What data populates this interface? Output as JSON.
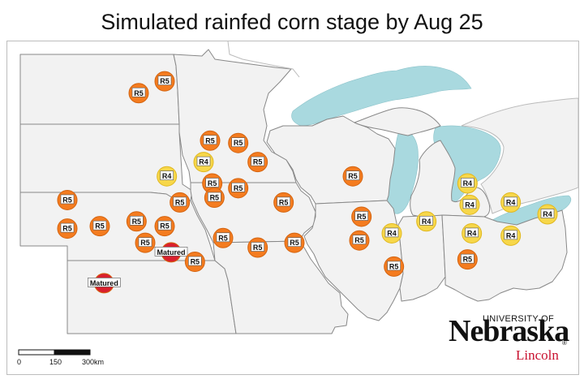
{
  "title": "Simulated rainfed corn stage by Aug 25",
  "colors": {
    "lake": "#a9d9df",
    "state_fill": "#f2f2f2",
    "border": "#888888",
    "r5": "#f47c20",
    "r4": "#f7d74a",
    "matured": "#d9202e",
    "logo_red": "#c8102e"
  },
  "legend": {
    "scale_labels": [
      "0",
      "150",
      "300km"
    ]
  },
  "logo": {
    "university": "UNIVERSITY OF",
    "name": "Nebraska",
    "registered": "®",
    "campus": "Lincoln"
  },
  "markers": [
    {
      "label": "R5",
      "stage": "R5",
      "lon": -97.6,
      "lat": 48.3
    },
    {
      "label": "R5",
      "stage": "R5",
      "lon": -98.8,
      "lat": 47.8
    },
    {
      "label": "R5",
      "stage": "R5",
      "lon": -95.5,
      "lat": 45.8
    },
    {
      "label": "R5",
      "stage": "R5",
      "lon": -94.2,
      "lat": 45.7
    },
    {
      "label": "R4",
      "stage": "R4",
      "lon": -95.8,
      "lat": 44.9
    },
    {
      "label": "R5",
      "stage": "R5",
      "lon": -93.3,
      "lat": 44.9
    },
    {
      "label": "R4",
      "stage": "R4",
      "lon": -97.5,
      "lat": 44.3
    },
    {
      "label": "R5",
      "stage": "R5",
      "lon": -95.4,
      "lat": 44.0
    },
    {
      "label": "R5",
      "stage": "R5",
      "lon": -94.2,
      "lat": 43.8
    },
    {
      "label": "R5",
      "stage": "R5",
      "lon": -88.9,
      "lat": 44.3
    },
    {
      "label": "R5",
      "stage": "R5",
      "lon": -102.1,
      "lat": 43.3
    },
    {
      "label": "R5",
      "stage": "R5",
      "lon": -96.9,
      "lat": 43.2
    },
    {
      "label": "R5",
      "stage": "R5",
      "lon": -95.3,
      "lat": 43.4
    },
    {
      "label": "R5",
      "stage": "R5",
      "lon": -92.1,
      "lat": 43.2
    },
    {
      "label": "R5",
      "stage": "R5",
      "lon": -102.1,
      "lat": 42.1
    },
    {
      "label": "R5",
      "stage": "R5",
      "lon": -100.6,
      "lat": 42.2
    },
    {
      "label": "R5",
      "stage": "R5",
      "lon": -98.9,
      "lat": 42.4
    },
    {
      "label": "R5",
      "stage": "R5",
      "lon": -97.6,
      "lat": 42.2
    },
    {
      "label": "R5",
      "stage": "R5",
      "lon": -98.5,
      "lat": 41.5
    },
    {
      "label": "R5",
      "stage": "R5",
      "lon": -94.9,
      "lat": 41.7
    },
    {
      "label": "R5",
      "stage": "R5",
      "lon": -93.3,
      "lat": 41.3
    },
    {
      "label": "R5",
      "stage": "R5",
      "lon": -91.6,
      "lat": 41.5
    },
    {
      "label": "R5",
      "stage": "R5",
      "lon": -88.5,
      "lat": 42.6
    },
    {
      "label": "R5",
      "stage": "R5",
      "lon": -88.6,
      "lat": 41.6
    },
    {
      "label": "R4",
      "stage": "R4",
      "lon": -87.1,
      "lat": 41.9
    },
    {
      "label": "R5",
      "stage": "R5",
      "lon": -87.0,
      "lat": 40.5
    },
    {
      "label": "Matured",
      "stage": "Matured",
      "lon": -97.3,
      "lat": 41.1
    },
    {
      "label": "R5",
      "stage": "R5",
      "lon": -96.2,
      "lat": 40.7
    },
    {
      "label": "Matured",
      "stage": "Matured",
      "lon": -100.4,
      "lat": 39.8
    },
    {
      "label": "R4",
      "stage": "R4",
      "lon": -85.5,
      "lat": 42.4
    },
    {
      "label": "R4",
      "stage": "R4",
      "lon": -83.6,
      "lat": 44.0
    },
    {
      "label": "R4",
      "stage": "R4",
      "lon": -83.5,
      "lat": 43.1
    },
    {
      "label": "R4",
      "stage": "R4",
      "lon": -83.4,
      "lat": 41.9
    },
    {
      "label": "R5",
      "stage": "R5",
      "lon": -83.6,
      "lat": 40.8
    },
    {
      "label": "R4",
      "stage": "R4",
      "lon": -81.6,
      "lat": 43.2
    },
    {
      "label": "R4",
      "stage": "R4",
      "lon": -81.6,
      "lat": 41.8
    },
    {
      "label": "R4",
      "stage": "R4",
      "lon": -79.9,
      "lat": 42.7
    }
  ]
}
